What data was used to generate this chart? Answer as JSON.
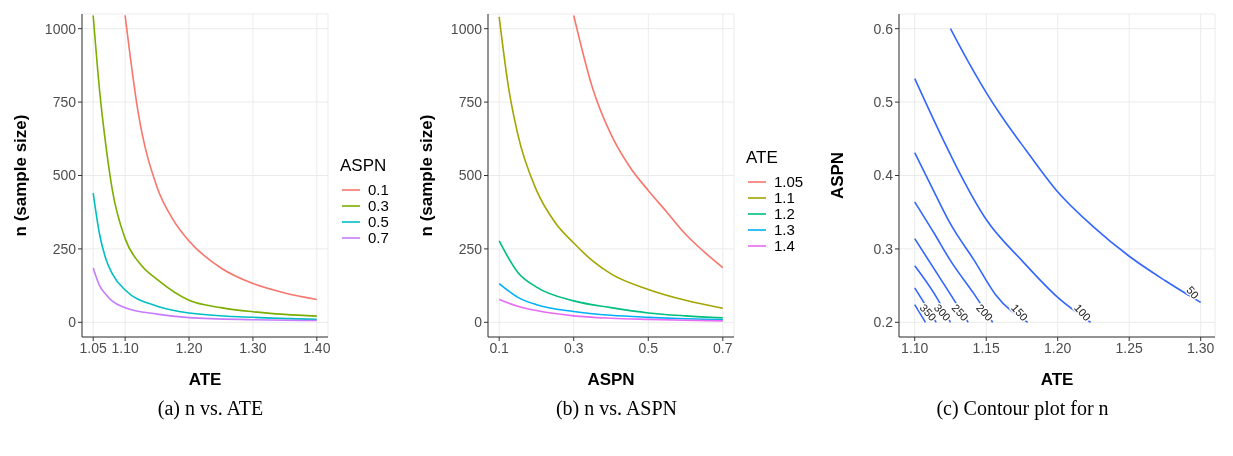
{
  "chart_data": [
    {
      "type": "line",
      "xlabel": "ATE",
      "ylabel": "n (sample size)",
      "legend_title": "ASPN",
      "legend": "right",
      "grid": true,
      "line_style": "solid",
      "annotations": [
        "(a) n vs. ATE"
      ],
      "xlim": [
        1.0325,
        1.4175
      ],
      "xticks": [
        1.05,
        {
          "value": 1.1,
          "label": "1.10"
        },
        {
          "value": 1.2,
          "label": "1.20"
        },
        {
          "value": 1.3,
          "label": "1.30"
        },
        {
          "value": 1.4,
          "label": "1.40"
        }
      ],
      "ylim": [
        -50,
        1050
      ],
      "yticks": [
        0,
        250,
        500,
        750,
        1000
      ],
      "series": [
        {
          "name": "0.1",
          "color": "#f8766d",
          "x": [
            1.1,
            1.12,
            1.15,
            1.175,
            1.2,
            1.25,
            1.3,
            1.35,
            1.4
          ],
          "values": [
            1045,
            720,
            460,
            350,
            277,
            185,
            132,
            100,
            78
          ]
        },
        {
          "name": "0.3",
          "color": "#7cae00",
          "x": [
            1.05,
            1.06,
            1.07,
            1.08,
            1.1,
            1.125,
            1.15,
            1.2,
            1.25,
            1.3,
            1.35,
            1.4
          ],
          "values": [
            1045,
            790,
            600,
            450,
            285,
            195,
            146,
            75,
            50,
            36,
            27,
            21
          ]
        },
        {
          "name": "0.5",
          "color": "#00bfc4",
          "x": [
            1.05,
            1.06,
            1.07,
            1.08,
            1.1,
            1.15,
            1.2,
            1.3,
            1.4
          ],
          "values": [
            440,
            300,
            215,
            165,
            110,
            55,
            32,
            17,
            10
          ]
        },
        {
          "name": "0.7",
          "color": "#c77cff",
          "x": [
            1.05,
            1.06,
            1.07,
            1.08,
            1.1,
            1.15,
            1.2,
            1.3,
            1.4
          ],
          "values": [
            185,
            125,
            95,
            72,
            50,
            28,
            16,
            9,
            6
          ]
        }
      ]
    },
    {
      "type": "line",
      "xlabel": "ASPN",
      "ylabel": "n (sample size)",
      "legend_title": "ATE",
      "legend": "right",
      "grid": true,
      "line_style": "solid",
      "annotations": [
        "(b) n vs. ASPN"
      ],
      "xlim": [
        0.07,
        0.73
      ],
      "xticks": [
        0.1,
        0.3,
        0.5,
        0.7
      ],
      "ylim": [
        -50,
        1050
      ],
      "yticks": [
        0,
        250,
        500,
        750,
        1000
      ],
      "series": [
        {
          "name": "1.05",
          "color": "#f8766d",
          "x": [
            0.3,
            0.35,
            0.4,
            0.45,
            0.5,
            0.55,
            0.6,
            0.65,
            0.7
          ],
          "values": [
            1045,
            800,
            640,
            530,
            449,
            375,
            300,
            240,
            186
          ]
        },
        {
          "name": "1.1",
          "color": "#a3a500",
          "x": [
            0.1,
            0.125,
            0.15,
            0.2,
            0.25,
            0.3,
            0.35,
            0.4,
            0.5,
            0.6,
            0.7
          ],
          "values": [
            1040,
            800,
            640,
            450,
            340,
            270,
            210,
            165,
            112,
            75,
            48
          ]
        },
        {
          "name": "1.2",
          "color": "#00bf7d",
          "x": [
            0.1,
            0.15,
            0.2,
            0.3,
            0.4,
            0.5,
            0.6,
            0.7
          ],
          "values": [
            277,
            170,
            120,
            73,
            50,
            32,
            22,
            15
          ]
        },
        {
          "name": "1.3",
          "color": "#00b0f6",
          "x": [
            0.1,
            0.15,
            0.2,
            0.3,
            0.4,
            0.5,
            0.6,
            0.7
          ],
          "values": [
            132,
            85,
            60,
            37,
            24,
            17,
            12,
            9
          ]
        },
        {
          "name": "1.4",
          "color": "#e76bf3",
          "x": [
            0.1,
            0.15,
            0.2,
            0.3,
            0.4,
            0.5,
            0.6,
            0.7
          ],
          "values": [
            78,
            55,
            40,
            22,
            14,
            10,
            7,
            5
          ]
        }
      ]
    },
    {
      "type": "line",
      "xlabel": "ATE",
      "ylabel": "ASPN",
      "legend": false,
      "grid": true,
      "line_style": "solid",
      "annotations": [
        "(c) Contour plot for n"
      ],
      "xlim": [
        1.089,
        1.31
      ],
      "xticks": [
        {
          "value": 1.1,
          "label": "1.10"
        },
        1.15,
        {
          "value": 1.2,
          "label": "1.20"
        },
        1.25,
        {
          "value": 1.3,
          "label": "1.30"
        }
      ],
      "ylim": [
        0.18,
        0.62
      ],
      "yticks": [
        0.2,
        0.3,
        0.4,
        0.5,
        0.6
      ],
      "series": [
        {
          "name": "50",
          "color": "#3366ff",
          "x": [
            1.125,
            1.1374,
            1.15,
            1.161,
            1.178,
            1.199,
            1.225,
            1.25,
            1.275,
            1.3
          ],
          "values": [
            0.6,
            0.555,
            0.513,
            0.48,
            0.434,
            0.38,
            0.33,
            0.29,
            0.257,
            0.227
          ]
        },
        {
          "name": "100",
          "color": "#3366ff",
          "x": [
            1.1,
            1.1203,
            1.131,
            1.15,
            1.175,
            1.2,
            1.223
          ],
          "values": [
            0.532,
            0.447,
            0.405,
            0.34,
            0.284,
            0.234,
            0.2
          ]
        },
        {
          "name": "150",
          "color": "#3366ff",
          "x": [
            1.1,
            1.114,
            1.125,
            1.1417,
            1.1564,
            1.179
          ],
          "values": [
            0.431,
            0.376,
            0.334,
            0.284,
            0.238,
            0.2
          ]
        },
        {
          "name": "200",
          "color": "#3366ff",
          "x": [
            1.1,
            1.114,
            1.125,
            1.1417,
            1.1545
          ],
          "values": [
            0.364,
            0.32,
            0.284,
            0.238,
            0.2
          ]
        },
        {
          "name": "250",
          "color": "#3366ff",
          "x": [
            1.1,
            1.125,
            1.1374
          ],
          "values": [
            0.314,
            0.238,
            0.2
          ]
        },
        {
          "name": "300",
          "color": "#3366ff",
          "x": [
            1.1,
            1.114,
            1.125
          ],
          "values": [
            0.277,
            0.238,
            0.2
          ]
        },
        {
          "name": "350",
          "color": "#3366ff",
          "x": [
            1.1,
            1.115
          ],
          "values": [
            0.247,
            0.2
          ]
        },
        {
          "color": "#3366ff",
          "x": [
            1.1,
            1.1075
          ],
          "values": [
            0.224,
            0.2
          ]
        }
      ]
    }
  ]
}
